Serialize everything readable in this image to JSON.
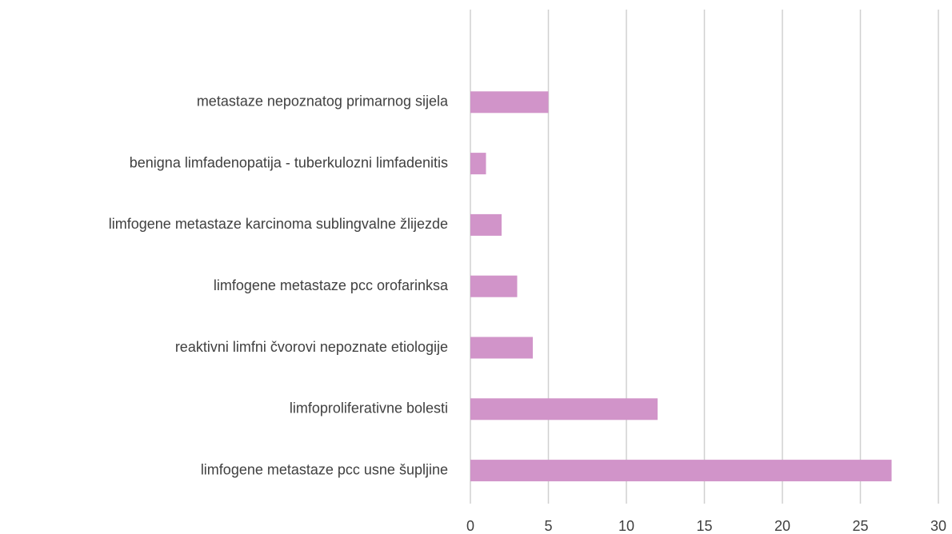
{
  "chart_data": {
    "type": "bar",
    "orientation": "horizontal",
    "categories": [
      "metastaze nepoznatog primarnog sijela",
      "benigna limfadenopatija - tuberkulozni limfadenitis",
      "limfogene metastaze karcinoma sublingvalne žlijezde",
      "limfogene metastaze pcc orofarinksa",
      "reaktivni limfni čvorovi nepoznate etiologije",
      "limfoproliferativne bolesti",
      "limfogene metastaze pcc usne šupljine"
    ],
    "values": [
      5,
      1,
      2,
      3,
      4,
      12,
      27
    ],
    "color": "#d194c9",
    "xlim": [
      0,
      30
    ],
    "xticks": [
      0,
      5,
      10,
      15,
      20,
      25,
      30
    ],
    "grid": true
  }
}
